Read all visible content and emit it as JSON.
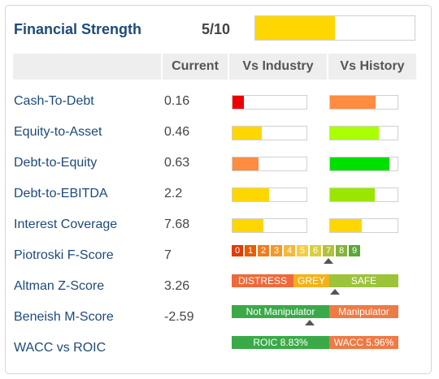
{
  "header": {
    "title": "Financial Strength",
    "score": "5/10",
    "score_fraction": 0.5
  },
  "columns": {
    "current": "Current",
    "vs_industry": "Vs Industry",
    "vs_history": "Vs History"
  },
  "rows": [
    {
      "label": "Cash-To-Debt",
      "value": "0.16",
      "industry": 0.15,
      "industry_color": "#ee0000",
      "history": 0.68,
      "history_color": "#ff8c40"
    },
    {
      "label": "Equity-to-Asset",
      "value": "0.46",
      "industry": 0.4,
      "industry_color": "#ffd700",
      "history": 0.72,
      "history_color": "#aaff00"
    },
    {
      "label": "Debt-to-Equity",
      "value": "0.63",
      "industry": 0.35,
      "industry_color": "#ff8c40",
      "history": 0.88,
      "history_color": "#00e000"
    },
    {
      "label": "Debt-to-EBITDA",
      "value": "2.2",
      "industry": 0.49,
      "industry_color": "#ffd700",
      "history": 0.66,
      "history_color": "#99e600"
    },
    {
      "label": "Interest Coverage",
      "value": "7.68",
      "industry": 0.42,
      "industry_color": "#ffd700",
      "history": 0.47,
      "history_color": "#ffd700"
    }
  ],
  "piotroski": {
    "label": "Piotroski F-Score",
    "value": "7",
    "cells": [
      "0",
      "1",
      "2",
      "3",
      "4",
      "5",
      "6",
      "7",
      "8",
      "9"
    ],
    "colors": [
      "#e23b00",
      "#e85b00",
      "#ef7d1a",
      "#f39a2b",
      "#f6b83a",
      "#f5cd45",
      "#d9cf3e",
      "#b2c23a",
      "#86b33a",
      "#5aa63a"
    ],
    "marker_index": 7
  },
  "altman": {
    "label": "Altman Z-Score",
    "value": "3.26",
    "segments": [
      {
        "text": "DISTRESS",
        "color": "#ee6a3a"
      },
      {
        "text": "GREY",
        "color": "#f2b21a"
      },
      {
        "text": "SAFE",
        "color": "#9cc33a"
      }
    ],
    "marker_fraction": 0.62
  },
  "beneish": {
    "label": "Beneish M-Score",
    "value": "-2.59",
    "segments": [
      {
        "text": "Not Manipulator",
        "color": "#3aaa48"
      },
      {
        "text": "Manipulator",
        "color": "#ee7a45"
      }
    ],
    "marker_fraction": 0.47
  },
  "wacc": {
    "label": "WACC vs ROIC",
    "segments": [
      {
        "text": "ROIC 8.83%",
        "color": "#3aaa48"
      },
      {
        "text": "WACC 5.96%",
        "color": "#ee7a45"
      }
    ]
  }
}
